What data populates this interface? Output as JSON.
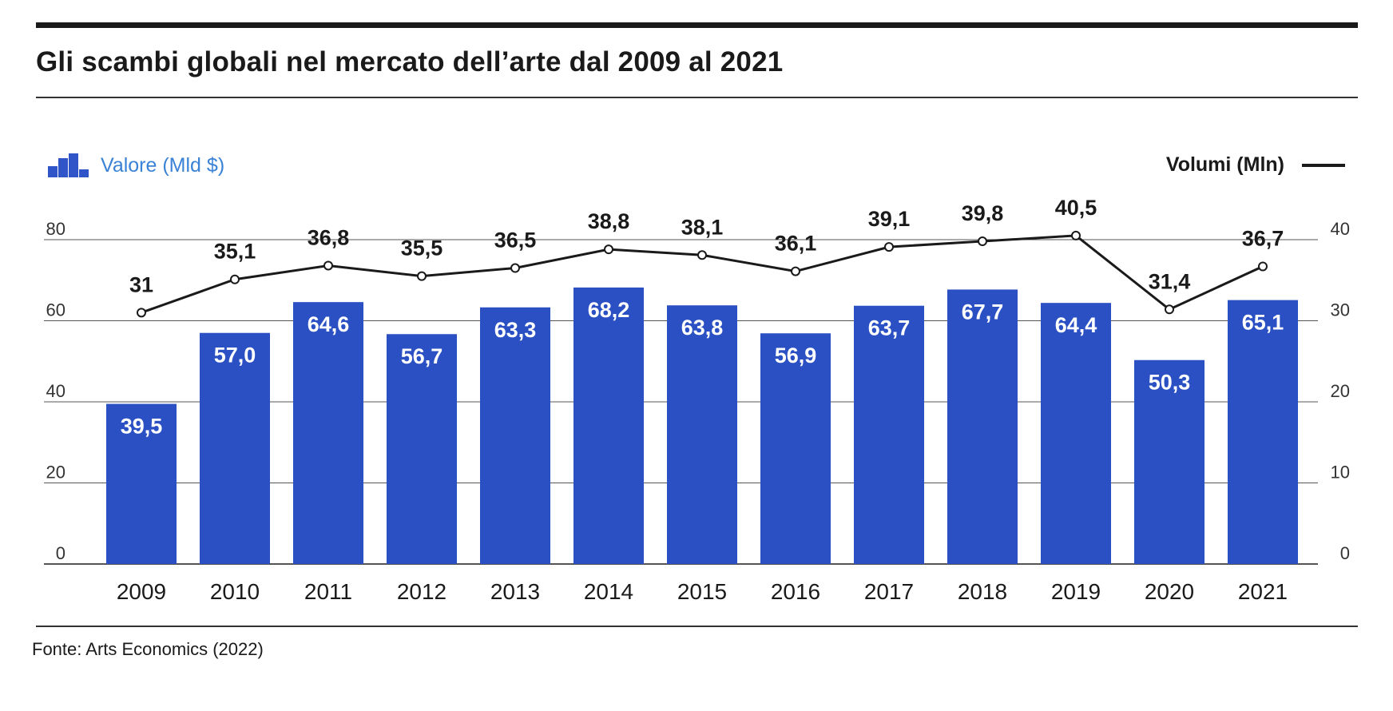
{
  "header": {
    "title": "Gli scambi globali nel mercato dell’arte dal 2009 al 2021"
  },
  "legend": {
    "bars_label": "Valore (Mld $)",
    "line_label": "Volumi (Mln)"
  },
  "source": "Fonte: Arts Economics (2022)",
  "colors": {
    "bar": "#2b50c4",
    "line": "#1a1a1a",
    "legend_text": "#3a82d6",
    "grid": "#555555"
  },
  "chart_data": {
    "type": "bar",
    "categories": [
      "2009",
      "2010",
      "2011",
      "2012",
      "2013",
      "2014",
      "2015",
      "2016",
      "2017",
      "2018",
      "2019",
      "2020",
      "2021"
    ],
    "series": [
      {
        "name": "Valore (Mld $)",
        "type": "bar",
        "axis": "left",
        "values": [
          39.5,
          57.0,
          64.6,
          56.7,
          63.3,
          68.2,
          63.8,
          56.9,
          63.7,
          67.7,
          64.4,
          50.3,
          65.1
        ],
        "labels": [
          "39,5",
          "57,0",
          "64,6",
          "56,7",
          "63,3",
          "68,2",
          "63,8",
          "56,9",
          "63,7",
          "67,7",
          "64,4",
          "50,3",
          "65,1"
        ]
      },
      {
        "name": "Volumi (Mln)",
        "type": "line",
        "axis": "right",
        "values": [
          31,
          35.1,
          36.8,
          35.5,
          36.5,
          38.8,
          38.1,
          36.1,
          39.1,
          39.8,
          40.5,
          31.4,
          36.7
        ],
        "labels": [
          "31",
          "35,1",
          "36,8",
          "35,5",
          "36,5",
          "38,8",
          "38,1",
          "36,1",
          "39,1",
          "39,8",
          "40,5",
          "31,4",
          "36,7"
        ]
      }
    ],
    "y_left": {
      "ylim": [
        0,
        80
      ],
      "ticks": [
        "0",
        "20",
        "40",
        "60",
        "80"
      ]
    },
    "y_right": {
      "ylim": [
        0,
        40
      ],
      "ticks": [
        "0",
        "10",
        "20",
        "30",
        "40"
      ]
    },
    "grid": true,
    "legend_position": "top"
  }
}
